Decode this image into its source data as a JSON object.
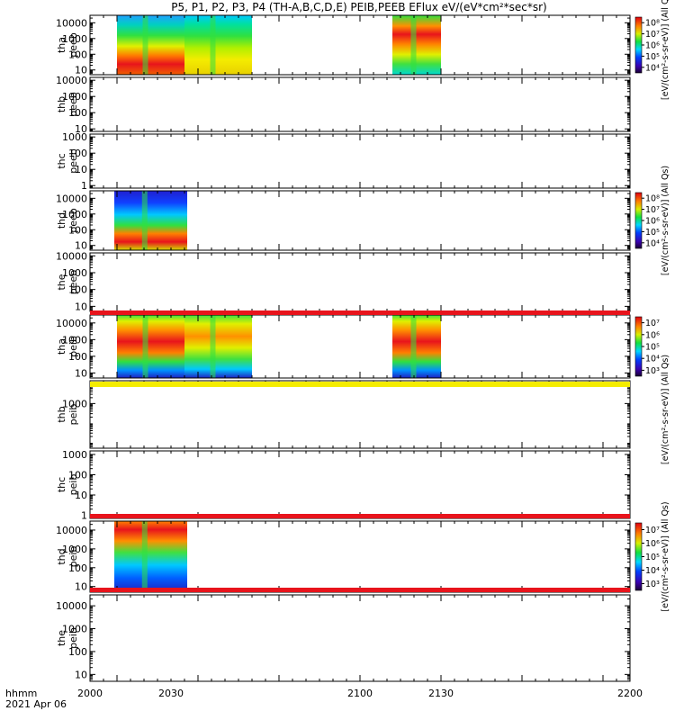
{
  "title": "P5, P1, P2, P3, P4 (TH-A,B,C,D,E) PEIB,PEEB EFlux eV/(eV*cm²*sec*sr)",
  "footer": {
    "time_format": "hhmm",
    "date": "2021 Apr 06"
  },
  "colors": {
    "spectro_red": "#e8141c",
    "spectro_yellow": "#f4ec00",
    "status_black": "#000000"
  },
  "chart_data": {
    "type": "heatmap",
    "x_unit": "hhmm",
    "xlim": [
      2000,
      2200
    ],
    "x_ticks": [
      "2000",
      "2030",
      "2100",
      "2130",
      "2200"
    ],
    "y_scale": "log",
    "panels": [
      {
        "name": "tha-peeb",
        "label": [
          "tha",
          "peeb"
        ],
        "y_ticks": [
          "10",
          "100",
          "1000",
          "10000"
        ],
        "colorbar": {
          "ticks": [
            "10⁴",
            "10⁵",
            "10⁶",
            "10⁷",
            "10⁸"
          ],
          "label": "[eV/(cm²-s-sr-eV)] (All Qs)"
        },
        "data_intervals": [
          [
            2010,
            2035
          ],
          [
            2035,
            2060
          ],
          [
            2112,
            2130
          ]
        ]
      },
      {
        "name": "thb-peeb",
        "label": [
          "thb",
          "peeb"
        ],
        "y_ticks": [
          "10",
          "100",
          "1000",
          "10000"
        ],
        "data_intervals": []
      },
      {
        "name": "thc-peeb",
        "label": [
          "thc",
          "peeb"
        ],
        "y_ticks": [
          "1",
          "10",
          "100",
          "1000"
        ],
        "data_intervals": []
      },
      {
        "name": "thd-peeb",
        "label": [
          "thd",
          "peeb"
        ],
        "y_ticks": [
          "10",
          "100",
          "1000",
          "10000"
        ],
        "colorbar": {
          "ticks": [
            "10⁴",
            "10⁵",
            "10⁶",
            "10⁷",
            "10⁸"
          ],
          "label": "[eV/(cm²-s-sr-eV)] (All Qs)"
        },
        "data_intervals": [
          [
            2009,
            2036
          ]
        ]
      },
      {
        "name": "the-peeb",
        "label": [
          "the",
          "peeb"
        ],
        "y_ticks": [
          "10",
          "100",
          "1000",
          "10000"
        ],
        "data_intervals": []
      },
      {
        "name": "tha-peib",
        "label": [
          "tha",
          "peib"
        ],
        "y_ticks": [
          "10",
          "100",
          "1000",
          "10000"
        ],
        "colorbar": {
          "ticks": [
            "10³",
            "10⁴",
            "10⁵",
            "10⁶",
            "10⁷"
          ],
          "label": "[eV/(cm²-s-sr-eV)] (All Qs)"
        },
        "data_intervals": [
          [
            2010,
            2035
          ],
          [
            2035,
            2060
          ],
          [
            2112,
            2130
          ]
        ]
      },
      {
        "name": "thb-peib",
        "label": [
          "thb",
          "peib"
        ],
        "y_ticks": [
          "1000"
        ],
        "data_intervals": []
      },
      {
        "name": "thc-peib",
        "label": [
          "thc",
          "peib"
        ],
        "y_ticks": [
          "1",
          "10",
          "100",
          "1000"
        ],
        "data_intervals": []
      },
      {
        "name": "thd-peib",
        "label": [
          "thd",
          "peib"
        ],
        "y_ticks": [
          "10",
          "100",
          "1000",
          "10000"
        ],
        "colorbar": {
          "ticks": [
            "10³",
            "10⁴",
            "10⁵",
            "10⁶",
            "10⁷"
          ],
          "label": "[eV/(cm²-s-sr-eV)] (All Qs)"
        },
        "data_intervals": [
          [
            2009,
            2036
          ]
        ]
      },
      {
        "name": "the-peib",
        "label": [
          "the",
          "peib"
        ],
        "y_ticks": [
          "10",
          "100",
          "1000",
          "10000"
        ],
        "data_intervals": []
      }
    ]
  }
}
